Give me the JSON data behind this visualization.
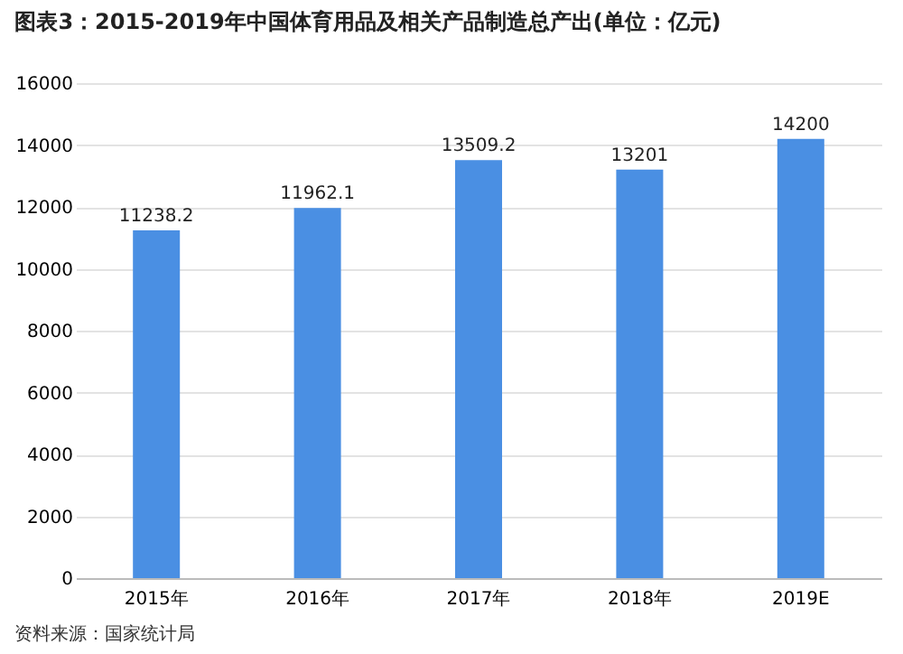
{
  "chart_data": {
    "type": "bar",
    "title": "图表3：2015-2019年中国体育用品及相关产品制造总产出(单位：亿元)",
    "categories": [
      "2015年",
      "2016年",
      "2017年",
      "2018年",
      "2019E"
    ],
    "values": [
      11238.2,
      11962.1,
      13509.2,
      13201,
      14200
    ],
    "color": "#4a8fe3",
    "ylim": [
      0,
      16000
    ],
    "yticks": [
      0,
      2000,
      4000,
      6000,
      8000,
      10000,
      12000,
      14000,
      16000
    ],
    "grid": "y",
    "data_labels": true,
    "annotations": [
      "资料来源：国家统计局"
    ]
  }
}
